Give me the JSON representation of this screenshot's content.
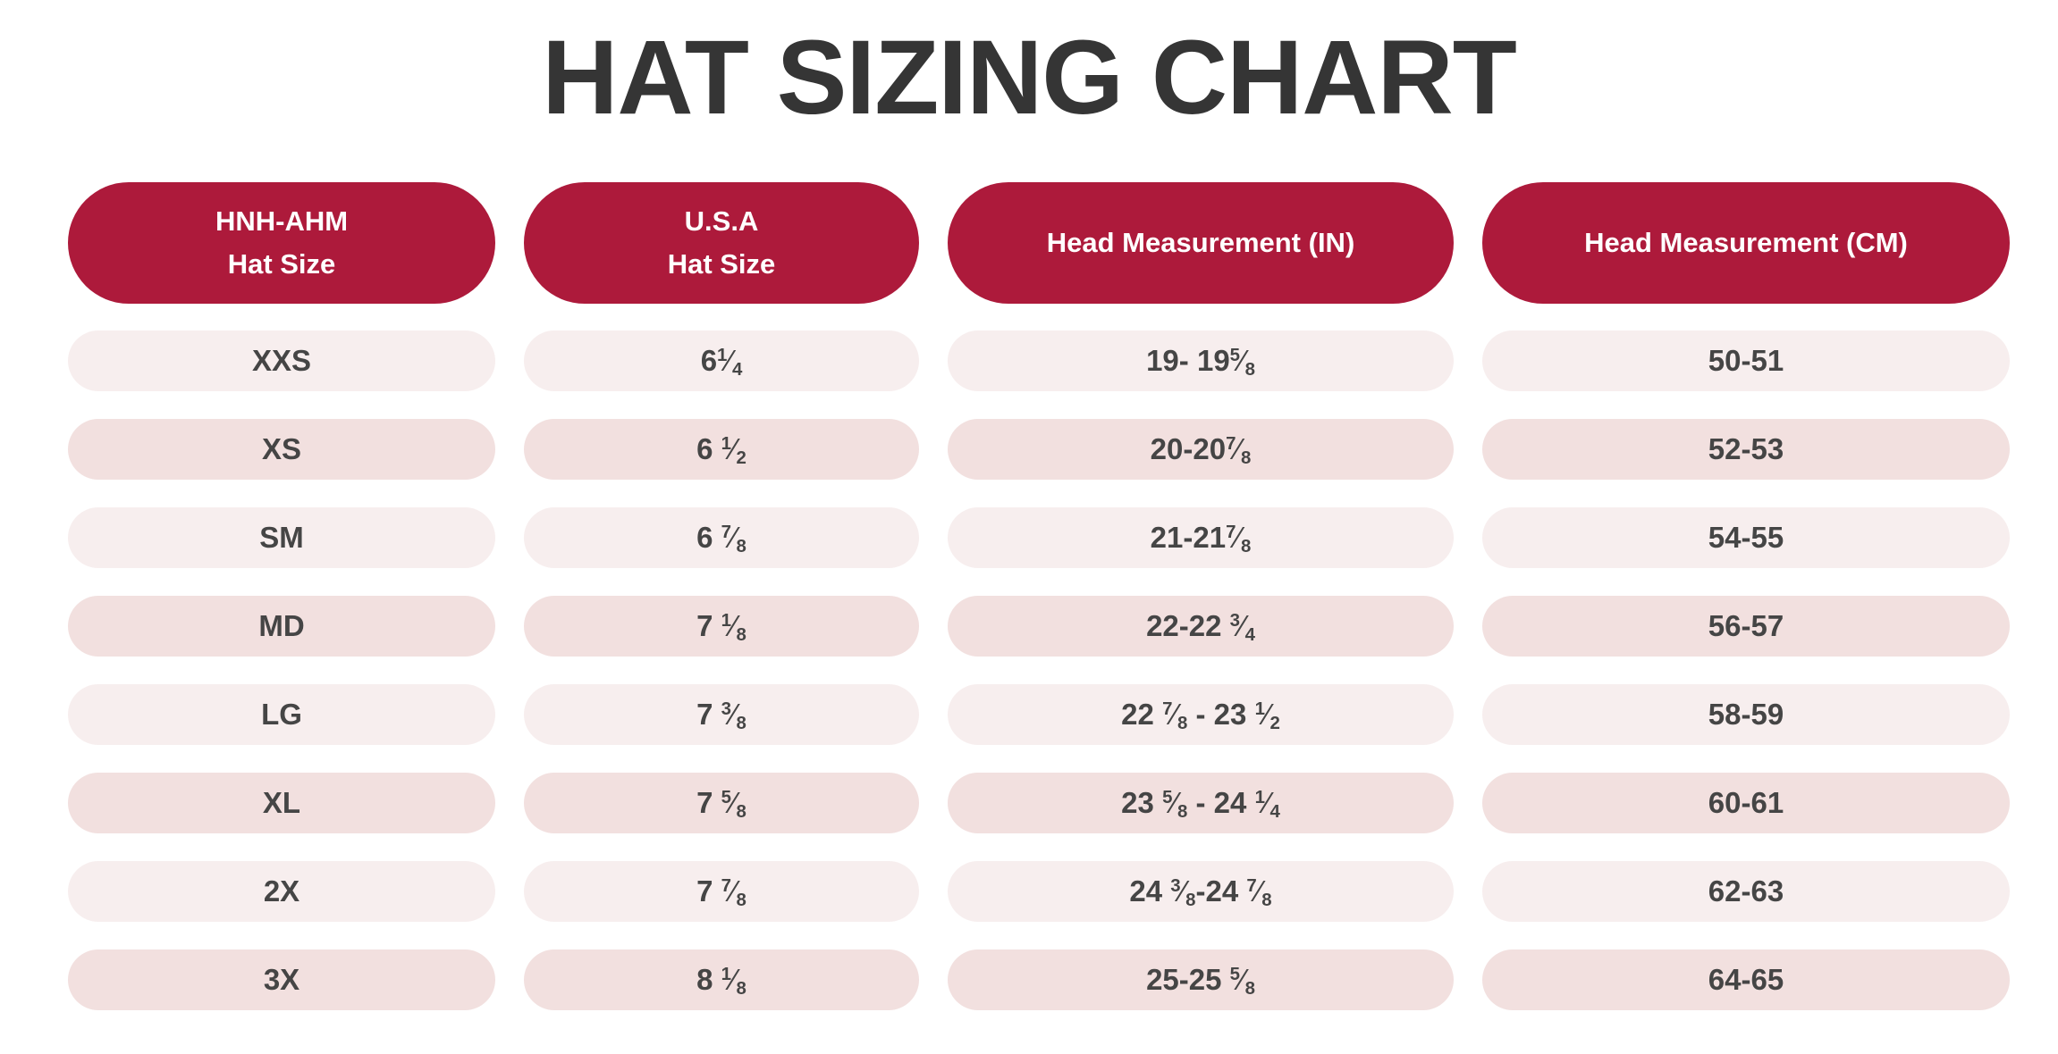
{
  "title": "HAT SIZING CHART",
  "colors": {
    "header_bg": "#ad1a3b",
    "header_text": "#ffffff",
    "row_light": "#f7eeee",
    "row_dark": "#f2e0df",
    "body_text": "#454545",
    "title_text": "#353535"
  },
  "headers": [
    [
      "HNH-AHM",
      "Hat Size"
    ],
    [
      "U.S.A",
      "Hat Size"
    ],
    [
      "Head Measurement (IN)"
    ],
    [
      "Head Measurement (CM)"
    ]
  ],
  "rows": [
    [
      "XXS",
      "6¼",
      "19- 19⅝",
      "50-51"
    ],
    [
      "XS",
      "6 ½",
      "20-20⅞",
      "52-53"
    ],
    [
      "SM",
      "6 ⅞",
      "21-21⅞",
      "54-55"
    ],
    [
      "MD",
      "7 ⅛",
      "22-22 ¾",
      "56-57"
    ],
    [
      "LG",
      "7 ⅜",
      "22 ⅞ - 23 ½",
      "58-59"
    ],
    [
      "XL",
      "7 ⅝",
      "23 ⅝ - 24 ¼",
      "60-61"
    ],
    [
      "2X",
      "7 ⅞",
      "24 ⅜-24 ⅞",
      "62-63"
    ],
    [
      "3X",
      "8 ⅛",
      "25-25 ⅝",
      "64-65"
    ]
  ]
}
